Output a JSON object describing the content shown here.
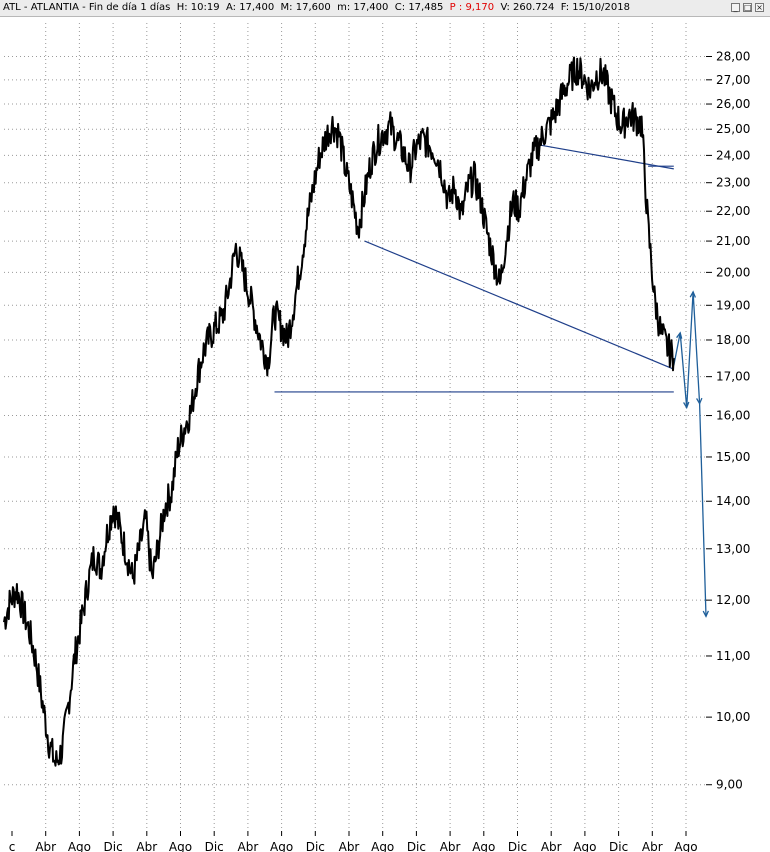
{
  "header": {
    "symbol": "ATL",
    "name": "ATLANTIA",
    "period": "Fin de día 1 días",
    "h_label": "H:",
    "h_value": "10:19",
    "a_label": "A:",
    "a_value": "17,400",
    "m_label": "M:",
    "m_value": "17,600",
    "mn_label": "m:",
    "mn_value": "17,400",
    "c_label": "C:",
    "c_value": "17,485",
    "p_label": "P :",
    "p_value": "9,170",
    "v_label": "V:",
    "v_value": "260.724",
    "f_label": "F:",
    "f_value": "15/10/2018",
    "highlight_color": "#e00000",
    "window_buttons": [
      "minimize-icon",
      "restore-icon",
      "close-icon"
    ]
  },
  "chart_data": {
    "type": "line",
    "title": "ATL - ATLANTIA",
    "series": [
      {
        "color": "#000000",
        "points": [
          [
            0,
            11.6
          ],
          [
            1,
            12.0
          ],
          [
            2,
            12.2
          ],
          [
            3,
            11.8
          ],
          [
            4,
            11.4
          ],
          [
            5,
            10.9
          ],
          [
            6,
            10.2
          ],
          [
            7,
            9.6
          ],
          [
            8,
            9.3
          ],
          [
            9,
            9.5
          ],
          [
            10,
            10.2
          ],
          [
            11,
            11.0
          ],
          [
            12,
            11.6
          ],
          [
            13,
            12.3
          ],
          [
            14,
            12.9
          ],
          [
            15,
            12.6
          ],
          [
            16,
            13.3
          ],
          [
            17,
            13.9
          ],
          [
            18,
            13.4
          ],
          [
            19,
            12.9
          ],
          [
            20,
            12.4
          ],
          [
            21,
            13.0
          ],
          [
            22,
            13.6
          ],
          [
            23,
            12.4
          ],
          [
            24,
            13.1
          ],
          [
            25,
            13.9
          ],
          [
            26,
            14.2
          ],
          [
            27,
            15.2
          ],
          [
            28,
            15.7
          ],
          [
            29,
            16.1
          ],
          [
            30,
            17.0
          ],
          [
            31,
            17.7
          ],
          [
            32,
            18.1
          ],
          [
            33,
            18.4
          ],
          [
            34,
            18.7
          ],
          [
            35,
            19.6
          ],
          [
            36,
            20.8
          ],
          [
            37,
            20.1
          ],
          [
            38,
            19.4
          ],
          [
            39,
            18.6
          ],
          [
            40,
            17.9
          ],
          [
            41,
            17.4
          ],
          [
            42,
            18.8
          ],
          [
            43,
            18.4
          ],
          [
            44,
            18.0
          ],
          [
            45,
            19.0
          ],
          [
            46,
            20.2
          ],
          [
            47,
            21.6
          ],
          [
            48,
            22.8
          ],
          [
            49,
            24.0
          ],
          [
            50,
            24.7
          ],
          [
            51,
            25.2
          ],
          [
            52,
            24.8
          ],
          [
            53,
            23.5
          ],
          [
            54,
            22.5
          ],
          [
            55,
            21.4
          ],
          [
            56,
            22.6
          ],
          [
            57,
            23.8
          ],
          [
            58,
            24.5
          ],
          [
            59,
            24.9
          ],
          [
            60,
            25.1
          ],
          [
            61,
            24.6
          ],
          [
            62,
            24.1
          ],
          [
            63,
            23.5
          ],
          [
            64,
            24.3
          ],
          [
            65,
            24.6
          ],
          [
            66,
            24.4
          ],
          [
            67,
            24.1
          ],
          [
            68,
            23.4
          ],
          [
            69,
            22.3
          ],
          [
            70,
            22.9
          ],
          [
            71,
            21.8
          ],
          [
            72,
            22.8
          ],
          [
            73,
            23.2
          ],
          [
            74,
            22.4
          ],
          [
            75,
            21.3
          ],
          [
            76,
            20.4
          ],
          [
            77,
            19.6
          ],
          [
            78,
            21.1
          ],
          [
            79,
            22.3
          ],
          [
            80,
            22.1
          ],
          [
            81,
            23.1
          ],
          [
            82,
            23.9
          ],
          [
            83,
            24.4
          ],
          [
            84,
            24.9
          ],
          [
            85,
            25.3
          ],
          [
            86,
            25.9
          ],
          [
            87,
            26.6
          ],
          [
            88,
            27.1
          ],
          [
            89,
            27.5
          ],
          [
            90,
            27.1
          ],
          [
            91,
            26.6
          ],
          [
            92,
            27.2
          ],
          [
            93,
            27.3
          ],
          [
            94,
            26.4
          ],
          [
            95,
            25.6
          ],
          [
            96,
            25.1
          ],
          [
            97,
            25.6
          ],
          [
            98,
            25.4
          ],
          [
            99,
            25.2
          ],
          [
            100,
            21.5
          ],
          [
            101,
            19.2
          ],
          [
            102,
            18.2
          ],
          [
            103,
            17.8
          ],
          [
            104,
            17.5
          ]
        ]
      }
    ],
    "x_tick_labels": [
      "c",
      "Abr",
      "Ago",
      "Dic",
      "Abr",
      "Ago",
      "Dic",
      "Abr",
      "Ago",
      "Dic",
      "Abr",
      "Ago",
      "Dic",
      "Abr",
      "Ago",
      "Dic",
      "Abr",
      "Ago",
      "Dic",
      "Abr",
      "Ago"
    ],
    "y_axis": {
      "scale": "log",
      "side": "right",
      "range": [
        8.4,
        29.5
      ],
      "ticks": [
        9,
        10,
        11,
        12,
        13,
        14,
        15,
        16,
        17,
        18,
        19,
        20,
        21,
        22,
        23,
        24,
        25,
        26,
        27,
        28
      ],
      "tick_labels": [
        "9,00",
        "10,00",
        "11,00",
        "12,00",
        "13,00",
        "14,00",
        "15,00",
        "16,00",
        "17,00",
        "18,00",
        "19,00",
        "20,00",
        "21,00",
        "22,00",
        "23,00",
        "24,00",
        "25,00",
        "26,00",
        "27,00",
        "28,00"
      ]
    },
    "grid": "dotted",
    "annotations": [
      {
        "type": "trendline",
        "color": "#1f3f8a",
        "from": [
          56,
          21.0
        ],
        "to": [
          104,
          17.2
        ]
      },
      {
        "type": "horizontal",
        "color": "#1f3f8a",
        "y": 16.6,
        "from_x": 42,
        "to_x": 104
      },
      {
        "type": "trendline",
        "color": "#1f3f8a",
        "from": [
          83,
          24.4
        ],
        "to": [
          104,
          23.5
        ]
      },
      {
        "type": "horizontal",
        "color": "#1f3f8a",
        "y": 23.6,
        "from_x": 100,
        "to_x": 104
      },
      {
        "type": "projection",
        "color": "#1f5f9a",
        "points": [
          [
            104,
            17.3
          ],
          [
            105,
            18.2
          ],
          [
            106,
            16.2
          ],
          [
            107,
            19.4
          ],
          [
            108,
            16.3
          ],
          [
            109,
            11.7
          ]
        ]
      }
    ]
  }
}
